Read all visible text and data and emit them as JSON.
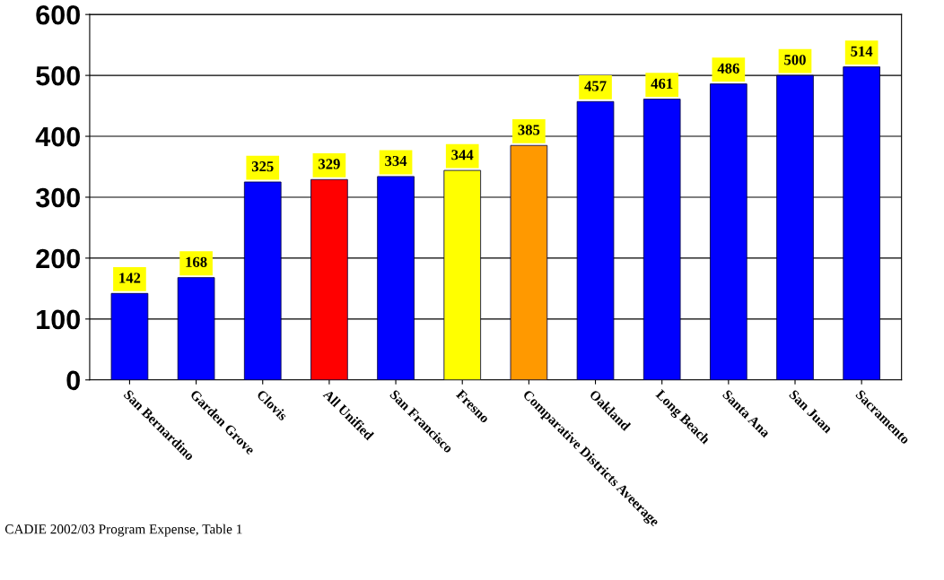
{
  "chart_data": {
    "type": "bar",
    "categories": [
      "San Bernardino",
      "Garden Grove",
      "Clovis",
      "All Unified",
      "San Francisco",
      "Fresno",
      "Comparative Districts Aveerage",
      "Oakland",
      "Long Beach",
      "Santa Ana",
      "San Juan",
      "Sacramento"
    ],
    "values": [
      142,
      168,
      325,
      329,
      334,
      344,
      385,
      457,
      461,
      486,
      500,
      514
    ],
    "colors": [
      "#0000ff",
      "#0000ff",
      "#0000ff",
      "#ff0000",
      "#0000ff",
      "#ffff00",
      "#ff9900",
      "#0000ff",
      "#0000ff",
      "#0000ff",
      "#0000ff",
      "#0000ff"
    ],
    "data_labels": true,
    "ylim": [
      0,
      600
    ],
    "yticks": [
      0,
      100,
      200,
      300,
      400,
      500,
      600
    ],
    "grid": "y",
    "annotations": [
      "CADIE 2002/03 Program Expense, Table 1"
    ]
  }
}
